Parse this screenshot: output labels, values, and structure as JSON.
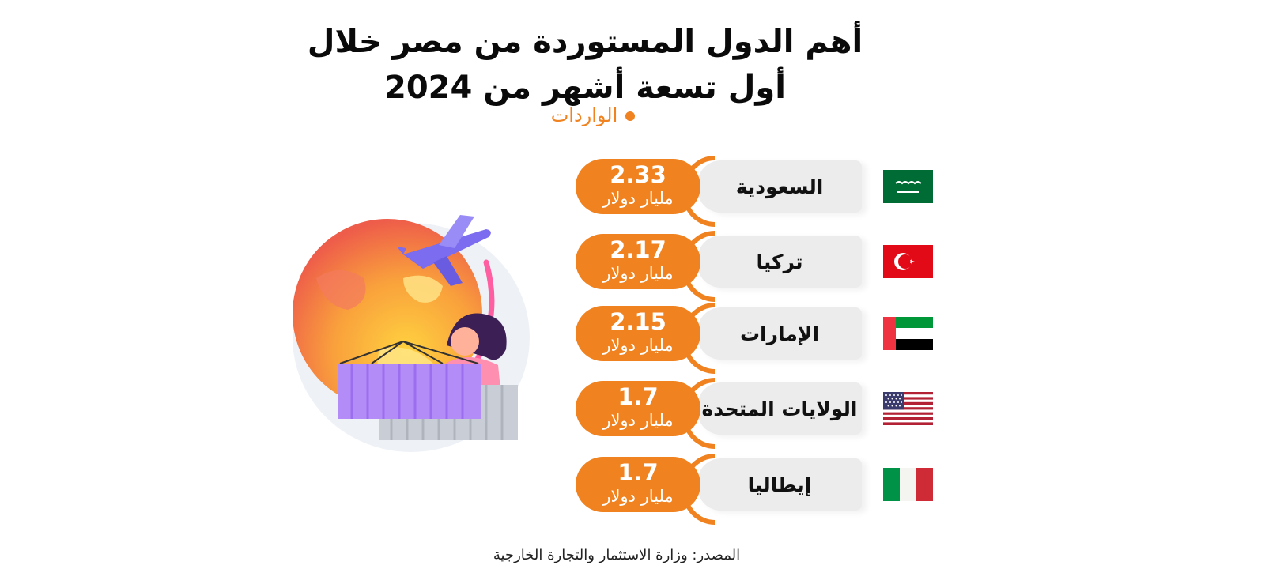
{
  "title_line1": "أهم الدول المستوردة من مصر خلال",
  "title_line2": "أول تسعة أشهر من 2024",
  "legend_label": "الواردات",
  "unit_label": "مليار دولار",
  "source": "المصدر: وزارة الاستثمار والتجارة الخارجية",
  "colors": {
    "accent": "#f0821f",
    "box": "#ececec"
  },
  "chart_data": {
    "type": "bar",
    "title": "أهم الدول المستوردة من مصر خلال أول تسعة أشهر من 2024",
    "categories": [
      "السعودية",
      "تركيا",
      "الإمارات",
      "الولايات المتحدة",
      "إيطاليا"
    ],
    "series": [
      {
        "name": "الواردات",
        "values": [
          2.33,
          2.17,
          2.15,
          1.7,
          1.7
        ]
      }
    ],
    "value_labels": [
      "2.33",
      "2.17",
      "2.15",
      "1.7",
      "1.7"
    ],
    "flags": [
      "saudi-arabia-flag",
      "turkey-flag",
      "uae-flag",
      "usa-flag",
      "italy-flag"
    ]
  }
}
